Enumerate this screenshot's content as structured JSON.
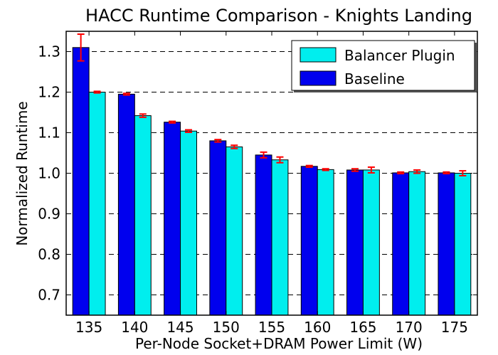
{
  "chart_data": {
    "type": "bar",
    "title": "HACC Runtime Comparison - Knights Landing",
    "xlabel": "Per-Node Socket+DRAM Power Limit (W)",
    "ylabel": "Normalized Runtime",
    "categories": [
      "135",
      "140",
      "145",
      "150",
      "155",
      "160",
      "165",
      "170",
      "175"
    ],
    "ylim": [
      0.65,
      1.35
    ],
    "yticks": [
      "0.7",
      "0.8",
      "0.9",
      "1.0",
      "1.1",
      "1.2",
      "1.3"
    ],
    "grid": "horizontal dashed",
    "legend_position": "top-right",
    "series": [
      {
        "name": "Baseline",
        "color": "#0000ee",
        "values": [
          1.31,
          1.195,
          1.126,
          1.08,
          1.045,
          1.017,
          1.008,
          1.001,
          1.001
        ],
        "errors": [
          0.033,
          0.002,
          0.002,
          0.003,
          0.007,
          0.002,
          0.003,
          0.002,
          0.002
        ]
      },
      {
        "name": "Balancer Plugin",
        "color": "#00eeee",
        "values": [
          1.2,
          1.142,
          1.104,
          1.065,
          1.033,
          1.009,
          1.008,
          1.004,
          1.0
        ],
        "errors": [
          0.002,
          0.004,
          0.003,
          0.004,
          0.007,
          0.002,
          0.007,
          0.004,
          0.006
        ]
      }
    ],
    "error_bar_color": "#ff0000"
  }
}
